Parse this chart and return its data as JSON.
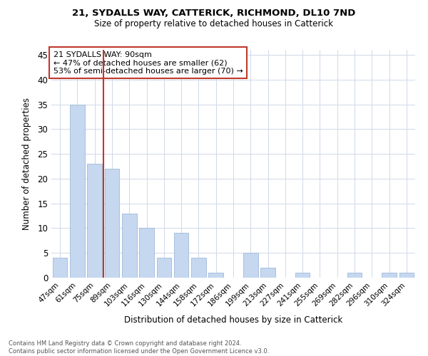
{
  "title1": "21, SYDALLS WAY, CATTERICK, RICHMOND, DL10 7ND",
  "title2": "Size of property relative to detached houses in Catterick",
  "xlabel": "Distribution of detached houses by size in Catterick",
  "ylabel": "Number of detached properties",
  "categories": [
    "47sqm",
    "61sqm",
    "75sqm",
    "89sqm",
    "103sqm",
    "116sqm",
    "130sqm",
    "144sqm",
    "158sqm",
    "172sqm",
    "186sqm",
    "199sqm",
    "213sqm",
    "227sqm",
    "241sqm",
    "255sqm",
    "269sqm",
    "282sqm",
    "296sqm",
    "310sqm",
    "324sqm"
  ],
  "values": [
    4,
    35,
    23,
    22,
    13,
    10,
    4,
    9,
    4,
    1,
    0,
    5,
    2,
    0,
    1,
    0,
    0,
    1,
    0,
    1,
    1
  ],
  "bar_color": "#c5d8f0",
  "bar_edgecolor": "#a0b8d8",
  "vline_color": "#c0392b",
  "annotation_text": "21 SYDALLS WAY: 90sqm\n← 47% of detached houses are smaller (62)\n53% of semi-detached houses are larger (70) →",
  "annotation_box_edgecolor": "#c0392b",
  "ylim": [
    0,
    46
  ],
  "yticks": [
    0,
    5,
    10,
    15,
    20,
    25,
    30,
    35,
    40,
    45
  ],
  "footnote": "Contains HM Land Registry data © Crown copyright and database right 2024.\nContains public sector information licensed under the Open Government Licence v3.0.",
  "bg_color": "#ffffff",
  "grid_color": "#d0d8e8"
}
